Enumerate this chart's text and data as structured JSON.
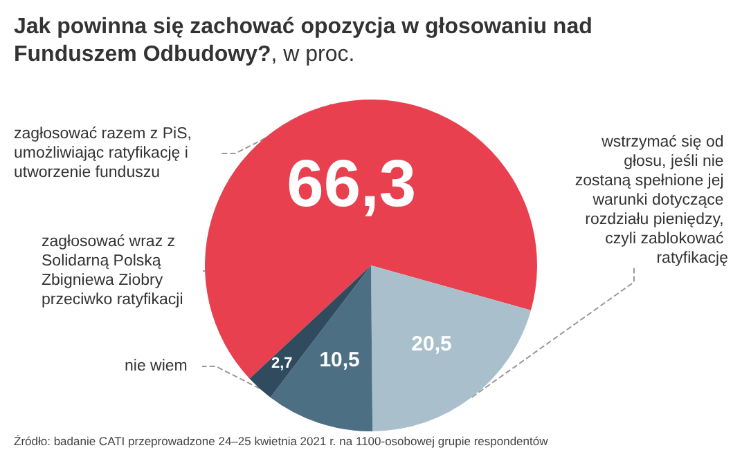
{
  "chart_data": {
    "type": "pie",
    "title": "Jak powinna się zachować opozycja w głosowaniu nad Funduszem Odbudowy?",
    "subtitle": ", w proc.",
    "categories": [
      "zagłosować razem z PiS, umożliwiając ratyfikację i utworzenie funduszu",
      "wstrzymać się od głosu, jeśli nie zostaną spełnione jej warunki dotyczące rozdziału pieniędzy, czyli zablokować ratyfikację",
      "zagłosować wraz z Solidarną Polską Zbigniewa Ziobry przeciwko ratyfikacji",
      "nie wiem"
    ],
    "values": [
      66.3,
      20.5,
      10.5,
      2.7
    ],
    "value_labels": [
      "66,3",
      "20,5",
      "10,5",
      "2,7"
    ],
    "colors": [
      "#e8404f",
      "#a9c0cc",
      "#4d6f84",
      "#2f4b5d"
    ],
    "legend": false,
    "annotations": [
      "Źródło: badanie CATI przeprowadzone 24–25 kwietnia 2021 r. na 1100-osobowej grupie respondentów"
    ]
  }
}
